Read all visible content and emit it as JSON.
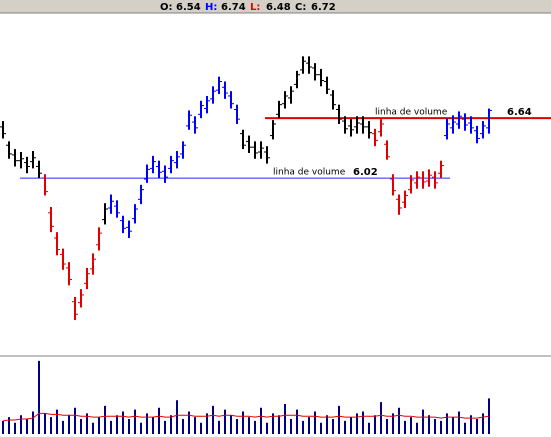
{
  "chart_data": {
    "type": "ohlc",
    "header": [
      {
        "label": "O:",
        "value": 6.54,
        "color": "#000000"
      },
      {
        "label": "H:",
        "value": 6.74,
        "color": "#0000ff"
      },
      {
        "label": "L:",
        "value": 6.48,
        "color": "#e00000"
      },
      {
        "label": "C:",
        "value": 6.72,
        "color": "#000000"
      }
    ],
    "open": [
      6.55,
      6.36,
      6.26,
      6.2,
      6.18,
      6.19,
      6.14,
      6.02,
      5.66,
      5.4,
      5.23,
      5.09,
      4.74,
      4.73,
      4.93,
      5.08,
      5.33,
      5.59,
      5.71,
      5.73,
      5.58,
      5.51,
      5.6,
      5.8,
      6.01,
      6.12,
      6.14,
      6.09,
      6.12,
      6.18,
      6.27,
      6.56,
      6.6,
      6.68,
      6.74,
      6.84,
      6.93,
      6.96,
      6.87,
      6.73,
      6.48,
      6.4,
      6.34,
      6.29,
      6.29,
      6.46,
      6.68,
      6.79,
      6.85,
      6.99,
      7.14,
      7.21,
      7.16,
      7.09,
      7.02,
      6.88,
      6.73,
      6.61,
      6.56,
      6.55,
      6.58,
      6.55,
      6.48,
      6.5,
      6.37,
      6.01,
      5.8,
      5.77,
      5.9,
      5.97,
      6.02,
      5.99,
      6.03,
      6.07,
      6.46,
      6.54,
      6.58,
      6.63,
      6.59,
      6.51,
      6.48,
      6.54
    ],
    "high": [
      6.61,
      6.4,
      6.32,
      6.29,
      6.24,
      6.3,
      6.2,
      6.06,
      5.72,
      5.46,
      5.29,
      5.15,
      4.79,
      4.87,
      5.09,
      5.24,
      5.51,
      5.76,
      5.85,
      5.79,
      5.63,
      5.58,
      5.75,
      5.95,
      6.16,
      6.25,
      6.2,
      6.15,
      6.25,
      6.3,
      6.4,
      6.72,
      6.66,
      6.82,
      6.87,
      6.97,
      7.07,
      7.02,
      6.92,
      6.78,
      6.52,
      6.46,
      6.4,
      6.4,
      6.35,
      6.62,
      6.82,
      6.92,
      6.97,
      7.13,
      7.28,
      7.28,
      7.21,
      7.15,
      7.07,
      6.93,
      6.78,
      6.66,
      6.63,
      6.66,
      6.66,
      6.61,
      6.53,
      6.63,
      6.41,
      6.06,
      5.85,
      5.89,
      6.05,
      6.09,
      6.09,
      6.11,
      6.09,
      6.2,
      6.64,
      6.67,
      6.71,
      6.69,
      6.66,
      6.56,
      6.61,
      6.74
    ],
    "low": [
      6.43,
      6.22,
      6.14,
      6.12,
      6.07,
      6.12,
      6.02,
      5.84,
      5.46,
      5.22,
      5.07,
      4.91,
      4.55,
      4.68,
      4.87,
      5.02,
      5.27,
      5.54,
      5.65,
      5.61,
      5.45,
      5.4,
      5.55,
      5.75,
      5.97,
      6.07,
      6.02,
      5.97,
      6.07,
      6.12,
      6.22,
      6.52,
      6.48,
      6.64,
      6.69,
      6.79,
      6.89,
      6.84,
      6.74,
      6.58,
      6.32,
      6.28,
      6.22,
      6.22,
      6.17,
      6.42,
      6.64,
      6.74,
      6.79,
      6.95,
      7.1,
      7.1,
      7.03,
      6.97,
      6.89,
      6.73,
      6.58,
      6.48,
      6.45,
      6.48,
      6.48,
      6.43,
      6.35,
      6.45,
      6.21,
      5.84,
      5.64,
      5.71,
      5.86,
      5.91,
      5.91,
      5.93,
      5.91,
      6.02,
      6.42,
      6.48,
      6.53,
      6.51,
      6.48,
      6.38,
      6.43,
      6.48
    ],
    "close": [
      6.48,
      6.27,
      6.2,
      6.22,
      6.14,
      6.23,
      6.07,
      5.88,
      5.52,
      5.28,
      5.13,
      4.97,
      4.61,
      4.81,
      5.03,
      5.18,
      5.45,
      5.7,
      5.78,
      5.66,
      5.5,
      5.47,
      5.7,
      5.9,
      6.11,
      6.19,
      6.08,
      6.03,
      6.2,
      6.24,
      6.36,
      6.67,
      6.54,
      6.77,
      6.82,
      6.92,
      7.02,
      6.9,
      6.79,
      6.63,
      6.36,
      6.34,
      6.28,
      6.33,
      6.23,
      6.58,
      6.78,
      6.87,
      6.92,
      7.09,
      7.23,
      7.17,
      7.09,
      7.03,
      6.94,
      6.78,
      6.63,
      6.53,
      6.52,
      6.59,
      6.55,
      6.49,
      6.41,
      6.58,
      6.24,
      5.89,
      5.71,
      5.84,
      6.0,
      6.03,
      5.98,
      6.05,
      5.97,
      6.15,
      6.58,
      6.6,
      6.66,
      6.57,
      6.54,
      6.43,
      6.56,
      6.72
    ],
    "colors": [
      "#000000",
      "#000000",
      "#000000",
      "#000000",
      "#000000",
      "#000000",
      "#000000",
      "#e00000",
      "#e00000",
      "#e00000",
      "#e00000",
      "#e00000",
      "#e00000",
      "#e00000",
      "#e00000",
      "#e00000",
      "#e00000",
      "#000000",
      "#0000ff",
      "#0000ff",
      "#0000ff",
      "#0000ff",
      "#0000ff",
      "#0000ff",
      "#0000ff",
      "#0000ff",
      "#0000ff",
      "#0000ff",
      "#0000ff",
      "#0000ff",
      "#0000ff",
      "#0000ff",
      "#0000ff",
      "#0000ff",
      "#0000ff",
      "#0000ff",
      "#0000ff",
      "#0000ff",
      "#0000ff",
      "#0000ff",
      "#000000",
      "#000000",
      "#000000",
      "#000000",
      "#000000",
      "#000000",
      "#000000",
      "#000000",
      "#000000",
      "#000000",
      "#000000",
      "#000000",
      "#000000",
      "#000000",
      "#000000",
      "#000000",
      "#000000",
      "#000000",
      "#000000",
      "#000000",
      "#000000",
      "#000000",
      "#e00000",
      "#e00000",
      "#e00000",
      "#e00000",
      "#e00000",
      "#e00000",
      "#e00000",
      "#e00000",
      "#e00000",
      "#e00000",
      "#e00000",
      "#e00000",
      "#0000ff",
      "#0000ff",
      "#0000ff",
      "#0000ff",
      "#0000ff",
      "#0000ff",
      "#0000ff",
      "#0000ff"
    ],
    "ylim": [
      4.24,
      7.76
    ],
    "reference_lines": [
      {
        "label": "linha de volume",
        "value": 6.64,
        "color": "#e00000"
      },
      {
        "label": "linha de volume",
        "value": 6.02,
        "color": "#2828ff"
      }
    ],
    "volume": {
      "values": [
        14,
        18,
        12,
        20,
        16,
        24,
        78,
        22,
        18,
        26,
        14,
        20,
        28,
        16,
        22,
        12,
        18,
        30,
        14,
        20,
        24,
        16,
        26,
        12,
        22,
        18,
        28,
        14,
        20,
        36,
        16,
        24,
        18,
        12,
        22,
        30,
        14,
        26,
        20,
        16,
        24,
        18,
        14,
        28,
        12,
        22,
        20,
        32,
        16,
        26,
        14,
        18,
        24,
        12,
        20,
        16,
        30,
        14,
        18,
        22,
        24,
        12,
        20,
        34,
        16,
        22,
        28,
        14,
        18,
        12,
        26,
        20,
        16,
        14,
        22,
        18,
        24,
        12,
        20,
        16,
        22,
        38
      ],
      "color": "#000080",
      "average": [
        14,
        15,
        15,
        16,
        16,
        17,
        22,
        22,
        21,
        21,
        20,
        20,
        20,
        19,
        19,
        18,
        18,
        19,
        19,
        19,
        19,
        18,
        19,
        18,
        18,
        18,
        19,
        18,
        18,
        20,
        20,
        20,
        19,
        19,
        19,
        20,
        19,
        20,
        20,
        19,
        19,
        19,
        18,
        19,
        18,
        19,
        19,
        20,
        20,
        20,
        19,
        19,
        19,
        18,
        18,
        18,
        19,
        18,
        18,
        18,
        19,
        19,
        19,
        20,
        19,
        19,
        20,
        19,
        19,
        18,
        18,
        18,
        18,
        17,
        18,
        18,
        18,
        17,
        17,
        17,
        18,
        19
      ],
      "average_color": "#e00000",
      "ylim": [
        0,
        80
      ]
    }
  }
}
